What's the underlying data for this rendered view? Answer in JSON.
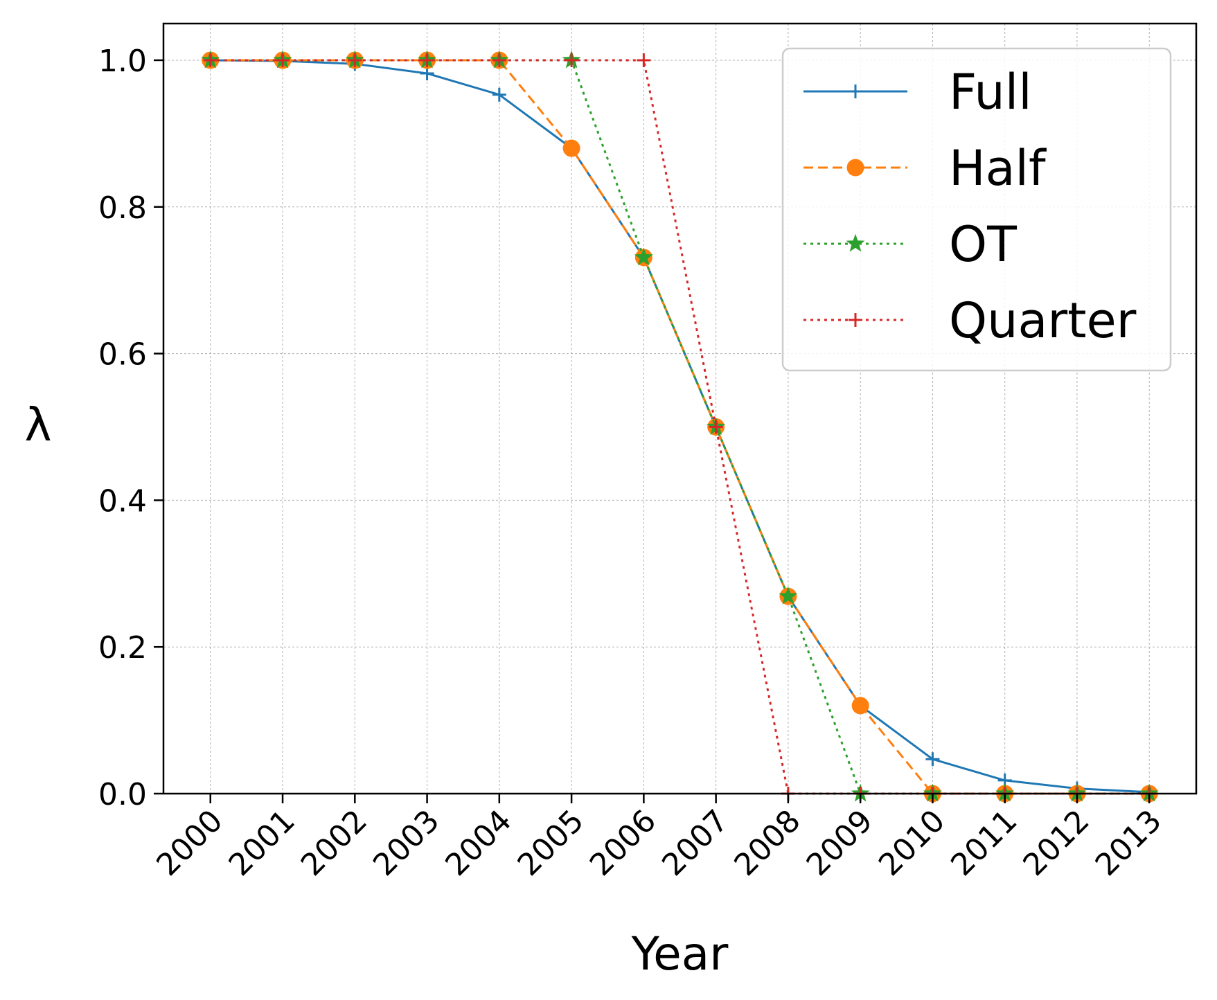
{
  "chart_data": {
    "type": "line",
    "xlabel": "Year",
    "ylabel": "λ",
    "x": [
      2000,
      2001,
      2002,
      2003,
      2004,
      2005,
      2006,
      2007,
      2008,
      2009,
      2010,
      2011,
      2012,
      2013
    ],
    "x_tick_labels": [
      "2000",
      "2001",
      "2002",
      "2003",
      "2004",
      "2005",
      "2006",
      "2007",
      "2008",
      "2009",
      "2010",
      "2011",
      "2012",
      "2013"
    ],
    "xlim": [
      1999.35,
      2013.65
    ],
    "ylim": [
      0.0,
      1.05
    ],
    "y_ticks": [
      0.0,
      0.2,
      0.4,
      0.6,
      0.8,
      1.0
    ],
    "y_tick_labels": [
      "0.0",
      "0.2",
      "0.4",
      "0.6",
      "0.8",
      "1.0"
    ],
    "grid": true,
    "legend_position": "top-right",
    "series": [
      {
        "name": "Full",
        "color": "#1f77b4",
        "line_style": "solid",
        "marker": "plus",
        "values": [
          1.0,
          0.999,
          0.995,
          0.982,
          0.953,
          0.88,
          0.731,
          0.5,
          0.269,
          0.12,
          0.047,
          0.018,
          0.007,
          0.002
        ]
      },
      {
        "name": "Half",
        "color": "#ff7f0e",
        "line_style": "dashed",
        "marker": "circle",
        "values": [
          1.0,
          1.0,
          1.0,
          1.0,
          1.0,
          0.88,
          0.731,
          0.5,
          0.269,
          0.12,
          0.0,
          0.0,
          0.0,
          0.0
        ]
      },
      {
        "name": "OT",
        "color": "#2ca02c",
        "line_style": "dotted",
        "marker": "star",
        "values": [
          1.0,
          1.0,
          1.0,
          1.0,
          1.0,
          1.0,
          0.731,
          0.5,
          0.269,
          0.0,
          0.0,
          0.0,
          0.0,
          0.0
        ]
      },
      {
        "name": "Quarter",
        "color": "#d62728",
        "line_style": "dotted",
        "marker": "plus",
        "values": [
          1.0,
          1.0,
          1.0,
          1.0,
          1.0,
          1.0,
          1.0,
          0.5,
          0.0,
          0.0,
          0.0,
          0.0,
          0.0,
          0.0
        ]
      }
    ]
  }
}
